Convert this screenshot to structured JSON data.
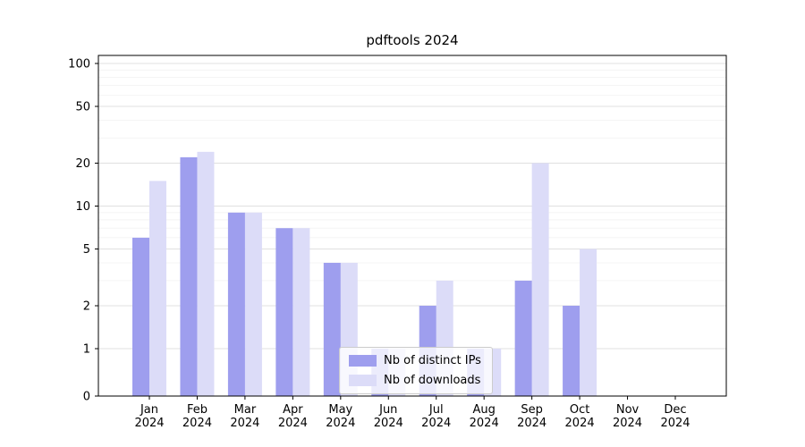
{
  "chart_data": {
    "type": "bar",
    "title": "pdftools 2024",
    "year_label": "2024",
    "categories": [
      "Jan",
      "Feb",
      "Mar",
      "Apr",
      "May",
      "Jun",
      "Jul",
      "Aug",
      "Sep",
      "Oct",
      "Nov",
      "Dec"
    ],
    "series": [
      {
        "name": "Nb of distinct IPs",
        "color": "#9e9eee",
        "values": [
          6,
          22,
          9,
          7,
          4,
          1,
          2,
          1,
          3,
          2,
          0,
          0
        ]
      },
      {
        "name": "Nb of downloads",
        "color": "#dcdcf8",
        "values": [
          15,
          24,
          9,
          7,
          4,
          1,
          3,
          1,
          20,
          5,
          0,
          0
        ]
      }
    ],
    "yscale": "symlog",
    "yticks": [
      0,
      1,
      2,
      5,
      10,
      20,
      50,
      100
    ],
    "ylim": [
      0,
      115
    ],
    "grid": true,
    "legend_position": "lower center",
    "colors": {
      "grid_major": "#e0e0e0",
      "grid_minor": "#f2f2f2",
      "axis": "#000000",
      "text": "#000000"
    }
  }
}
